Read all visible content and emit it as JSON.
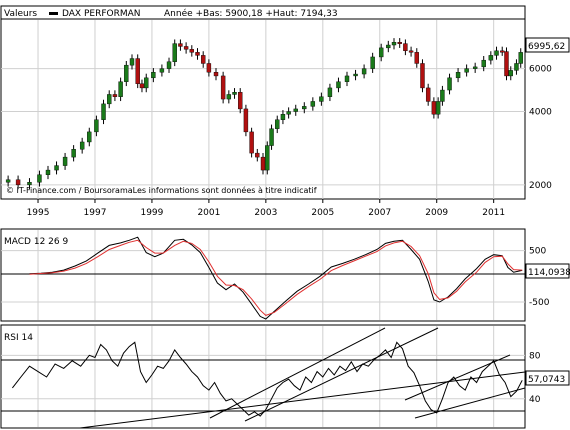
{
  "header": {
    "valeurs_label": "Valeurs",
    "series_name": "DAX PERFORMAN",
    "stats_text": "Année +Bas: 5900,18 +Haut: 7194,33"
  },
  "colors": {
    "up_candle": "#1a7a1a",
    "down_candle": "#b01010",
    "macd_line": "#000000",
    "signal_line": "#e03030",
    "grid": "#d0d0d0",
    "background": "#ffffff"
  },
  "chart_data": [
    {
      "type": "candlestick",
      "panel": "price",
      "log_scale": true,
      "ylim": [
        1750,
        9500
      ],
      "xlim": [
        1993.8,
        2012.2
      ],
      "y_ticks": [
        "2000",
        "4000",
        "6000"
      ],
      "x_ticks": [
        "1995",
        "1997",
        "1999",
        "2001",
        "2003",
        "2005",
        "2007",
        "2009",
        "2011"
      ],
      "last_value_label": "6995,62",
      "grid": true,
      "source_note": "© IT-Finance.com / BoursoramaLes informations sont données à titre indicatif",
      "close_series": {
        "x": [
          1993.9,
          1994.2,
          1994.6,
          1995.0,
          1995.3,
          1995.6,
          1995.9,
          1996.2,
          1996.5,
          1996.8,
          1997.0,
          1997.3,
          1997.5,
          1997.7,
          1997.9,
          1998.1,
          1998.3,
          1998.5,
          1998.7,
          1998.8,
          1999.0,
          1999.3,
          1999.6,
          1999.8,
          2000.0,
          2000.2,
          2000.4,
          2000.6,
          2000.8,
          2001.0,
          2001.2,
          2001.5,
          2001.7,
          2001.9,
          2002.1,
          2002.3,
          2002.5,
          2002.7,
          2002.9,
          2003.1,
          2003.2,
          2003.4,
          2003.6,
          2003.8,
          2004.0,
          2004.3,
          2004.6,
          2004.9,
          2005.2,
          2005.5,
          2005.8,
          2006.1,
          2006.4,
          2006.7,
          2007.0,
          2007.3,
          2007.5,
          2007.7,
          2007.9,
          2008.1,
          2008.3,
          2008.5,
          2008.7,
          2008.9,
          2009.1,
          2009.2,
          2009.4,
          2009.7,
          2010.0,
          2010.3,
          2010.6,
          2010.9,
          2011.1,
          2011.3,
          2011.5,
          2011.6,
          2011.8,
          2012.0,
          2012.1
        ],
        "y": [
          2050,
          2100,
          2000,
          2050,
          2200,
          2300,
          2400,
          2600,
          2800,
          3000,
          3300,
          3700,
          4300,
          4700,
          4600,
          5300,
          6200,
          6600,
          5200,
          5000,
          5500,
          5800,
          6000,
          6400,
          7600,
          7400,
          7200,
          7000,
          6800,
          6300,
          5800,
          5600,
          4500,
          4700,
          4800,
          4100,
          3300,
          2700,
          2600,
          2300,
          2900,
          3400,
          3700,
          3900,
          4000,
          4100,
          4200,
          4400,
          4600,
          5000,
          5300,
          5600,
          5700,
          6000,
          6700,
          7300,
          7500,
          7700,
          7600,
          7100,
          7000,
          6300,
          5000,
          4400,
          3900,
          4400,
          4900,
          5500,
          5800,
          6000,
          6100,
          6500,
          6800,
          7100,
          7050,
          5600,
          5900,
          6300,
          6996
        ]
      }
    },
    {
      "type": "line",
      "panel": "MACD",
      "title": "MACD 12 26 9",
      "ylim": [
        -850,
        900
      ],
      "y_ticks": [
        "500",
        "-500"
      ],
      "last_value_label": "114,0938",
      "series": [
        {
          "x": [
            1994.8,
            1995.2,
            1995.6,
            1996.0,
            1996.4,
            1996.8,
            1997.2,
            1997.6,
            1998.0,
            1998.3,
            1998.6,
            1998.9,
            1999.2,
            1999.5,
            1999.9,
            2000.2,
            2000.5,
            2000.8,
            2001.1,
            2001.4,
            2001.7,
            2002.0,
            2002.3,
            2002.6,
            2002.9,
            2003.1,
            2003.4,
            2003.8,
            2004.2,
            2004.6,
            2005.0,
            2005.4,
            2005.8,
            2006.2,
            2006.6,
            2007.0,
            2007.3,
            2007.6,
            2007.9,
            2008.2,
            2008.5,
            2008.8,
            2009.0,
            2009.2,
            2009.5,
            2009.8,
            2010.1,
            2010.5,
            2010.8,
            2011.1,
            2011.4,
            2011.6,
            2011.8,
            2012.1
          ],
          "y": [
            50,
            60,
            80,
            120,
            200,
            300,
            450,
            600,
            650,
            700,
            760,
            460,
            380,
            450,
            700,
            720,
            610,
            460,
            170,
            -130,
            -260,
            -150,
            -310,
            -540,
            -780,
            -830,
            -680,
            -480,
            -290,
            -150,
            0,
            180,
            250,
            330,
            420,
            520,
            640,
            680,
            700,
            520,
            330,
            -100,
            -460,
            -500,
            -400,
            -240,
            -50,
            150,
            330,
            420,
            400,
            170,
            80,
            114
          ]
        },
        {
          "x": [
            1994.8,
            1995.2,
            1995.6,
            1996.0,
            1996.4,
            1996.8,
            1997.2,
            1997.6,
            1998.0,
            1998.3,
            1998.6,
            1998.9,
            1999.2,
            1999.5,
            1999.9,
            2000.2,
            2000.5,
            2000.8,
            2001.1,
            2001.4,
            2001.7,
            2002.0,
            2002.3,
            2002.6,
            2002.9,
            2003.1,
            2003.4,
            2003.8,
            2004.2,
            2004.6,
            2005.0,
            2005.4,
            2005.8,
            2006.2,
            2006.6,
            2007.0,
            2007.3,
            2007.6,
            2007.9,
            2008.2,
            2008.5,
            2008.8,
            2009.0,
            2009.2,
            2009.5,
            2009.8,
            2010.1,
            2010.5,
            2010.8,
            2011.1,
            2011.4,
            2011.6,
            2011.8,
            2012.1
          ],
          "y": [
            40,
            55,
            70,
            100,
            160,
            250,
            380,
            520,
            600,
            660,
            700,
            560,
            450,
            450,
            600,
            680,
            640,
            520,
            280,
            0,
            -170,
            -180,
            -260,
            -440,
            -660,
            -760,
            -700,
            -530,
            -350,
            -200,
            -60,
            110,
            210,
            300,
            390,
            480,
            590,
            650,
            680,
            580,
            400,
            50,
            -320,
            -450,
            -420,
            -290,
            -110,
            80,
            270,
            380,
            390,
            240,
            130,
            120
          ]
        }
      ]
    },
    {
      "type": "line",
      "panel": "RSI",
      "title": "RSI 14",
      "ylim": [
        14,
        107
      ],
      "y_ticks": [
        "80",
        "40"
      ],
      "last_value_label": "57,0743",
      "series": [
        {
          "x": [
            1994.2,
            1994.5,
            1994.8,
            1995.1,
            1995.4,
            1995.7,
            1996.0,
            1996.3,
            1996.6,
            1996.9,
            1997.1,
            1997.3,
            1997.5,
            1997.7,
            1997.9,
            1998.1,
            1998.3,
            1998.5,
            1998.7,
            1998.9,
            1999.1,
            1999.3,
            1999.5,
            1999.7,
            1999.9,
            2000.1,
            2000.3,
            2000.5,
            2000.7,
            2000.9,
            2001.1,
            2001.3,
            2001.5,
            2001.7,
            2001.9,
            2002.1,
            2002.3,
            2002.5,
            2002.7,
            2002.9,
            2003.1,
            2003.3,
            2003.5,
            2003.7,
            2003.9,
            2004.1,
            2004.3,
            2004.5,
            2004.7,
            2004.9,
            2005.1,
            2005.3,
            2005.5,
            2005.7,
            2005.9,
            2006.1,
            2006.3,
            2006.5,
            2006.7,
            2006.9,
            2007.1,
            2007.3,
            2007.5,
            2007.7,
            2007.9,
            2008.1,
            2008.3,
            2008.5,
            2008.7,
            2008.9,
            2009.1,
            2009.3,
            2009.5,
            2009.7,
            2009.9,
            2010.1,
            2010.3,
            2010.5,
            2010.7,
            2010.9,
            2011.1,
            2011.3,
            2011.5,
            2011.7,
            2011.9,
            2012.1
          ],
          "y": [
            50,
            60,
            70,
            65,
            60,
            72,
            68,
            75,
            70,
            80,
            78,
            90,
            85,
            75,
            70,
            82,
            88,
            92,
            65,
            55,
            62,
            70,
            68,
            75,
            85,
            78,
            72,
            65,
            60,
            52,
            48,
            55,
            45,
            38,
            40,
            35,
            30,
            25,
            28,
            24,
            30,
            40,
            50,
            55,
            58,
            52,
            48,
            60,
            55,
            65,
            60,
            68,
            62,
            70,
            66,
            74,
            65,
            72,
            70,
            76,
            80,
            85,
            78,
            92,
            86,
            70,
            64,
            52,
            38,
            30,
            27,
            40,
            55,
            60,
            52,
            48,
            60,
            55,
            65,
            70,
            75,
            62,
            55,
            42,
            47,
            57
          ]
        }
      ]
    }
  ]
}
